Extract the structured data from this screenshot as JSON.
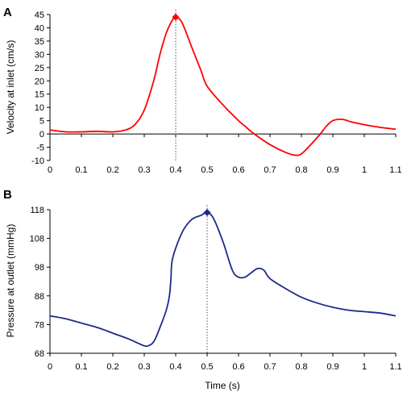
{
  "chart_data": [
    {
      "panel_label": "A",
      "type": "line",
      "xlabel": "",
      "ylabel": "Velocity at inlet (cm/s)",
      "xlim": [
        0,
        1.1
      ],
      "ylim": [
        -10,
        45
      ],
      "x_ticks": [
        "0",
        "0.1",
        "0.2",
        "0.3",
        "0.4",
        "0.5",
        "0.6",
        "0.7",
        "0.8",
        "0.9",
        "1",
        "1.1"
      ],
      "y_ticks": [
        "45",
        "40",
        "35",
        "30",
        "25",
        "20",
        "15",
        "10",
        "5",
        "0",
        "-5",
        "-10"
      ],
      "x_tick_values": [
        0,
        0.1,
        0.2,
        0.3,
        0.4,
        0.5,
        0.6,
        0.7,
        0.8,
        0.9,
        1.0,
        1.1
      ],
      "y_tick_values": [
        45,
        40,
        35,
        30,
        25,
        20,
        15,
        10,
        5,
        0,
        -5,
        -10
      ],
      "zero_line": true,
      "grid": false,
      "color": "#ff0000",
      "marker_color": "#ff0000",
      "peak": {
        "x": 0.4,
        "y": 44
      },
      "vline_x": 0.4,
      "series": [
        {
          "x": [
            0,
            0.05,
            0.1,
            0.15,
            0.2,
            0.24,
            0.27,
            0.3,
            0.33,
            0.35,
            0.37,
            0.39,
            0.4,
            0.42,
            0.45,
            0.48,
            0.5,
            0.55,
            0.6,
            0.62,
            0.65,
            0.7,
            0.75,
            0.78,
            0.8,
            0.83,
            0.86,
            0.88,
            0.9,
            0.93,
            0.96,
            1.0,
            1.05,
            1.1
          ],
          "y": [
            1.5,
            0.8,
            0.8,
            1.0,
            0.8,
            1.5,
            3.5,
            9,
            20,
            30,
            38,
            43,
            44,
            42,
            33,
            24,
            18,
            11,
            5,
            3,
            0,
            -4,
            -7,
            -8,
            -7.5,
            -4,
            0,
            3,
            5,
            5.5,
            4.5,
            3.5,
            2.5,
            1.8
          ]
        }
      ]
    },
    {
      "panel_label": "B",
      "type": "line",
      "xlabel": "Time (s)",
      "ylabel": "Pressure at outlet (mmHg)",
      "xlim": [
        0,
        1.1
      ],
      "ylim": [
        68,
        118
      ],
      "x_ticks": [
        "0",
        "0.1",
        "0.2",
        "0.3",
        "0.4",
        "0.5",
        "0.6",
        "0.7",
        "0.8",
        "0.9",
        "1",
        "1.1"
      ],
      "y_ticks": [
        "118",
        "108",
        "98",
        "88",
        "78",
        "68"
      ],
      "x_tick_values": [
        0,
        0.1,
        0.2,
        0.3,
        0.4,
        0.5,
        0.6,
        0.7,
        0.8,
        0.9,
        1.0,
        1.1
      ],
      "y_tick_values": [
        118,
        108,
        98,
        88,
        78,
        68
      ],
      "zero_line": false,
      "grid": false,
      "color": "#1c2a8c",
      "marker_color": "#1c2a8c",
      "peak": {
        "x": 0.5,
        "y": 117
      },
      "vline_x": 0.5,
      "series": [
        {
          "x": [
            0,
            0.05,
            0.1,
            0.15,
            0.2,
            0.25,
            0.29,
            0.31,
            0.33,
            0.35,
            0.37,
            0.38,
            0.385,
            0.39,
            0.42,
            0.45,
            0.48,
            0.5,
            0.52,
            0.55,
            0.58,
            0.6,
            0.62,
            0.64,
            0.66,
            0.68,
            0.7,
            0.75,
            0.8,
            0.85,
            0.9,
            0.95,
            1.0,
            1.05,
            1.1
          ],
          "y": [
            81,
            80,
            78.5,
            77,
            75,
            73,
            71,
            70.5,
            72,
            77,
            83,
            88,
            94,
            101,
            110,
            114.5,
            116,
            117,
            115,
            107,
            97,
            94.5,
            94.5,
            96,
            97.5,
            97,
            94,
            90.5,
            87.5,
            85.5,
            84,
            83,
            82.5,
            82,
            81
          ]
        }
      ]
    }
  ]
}
